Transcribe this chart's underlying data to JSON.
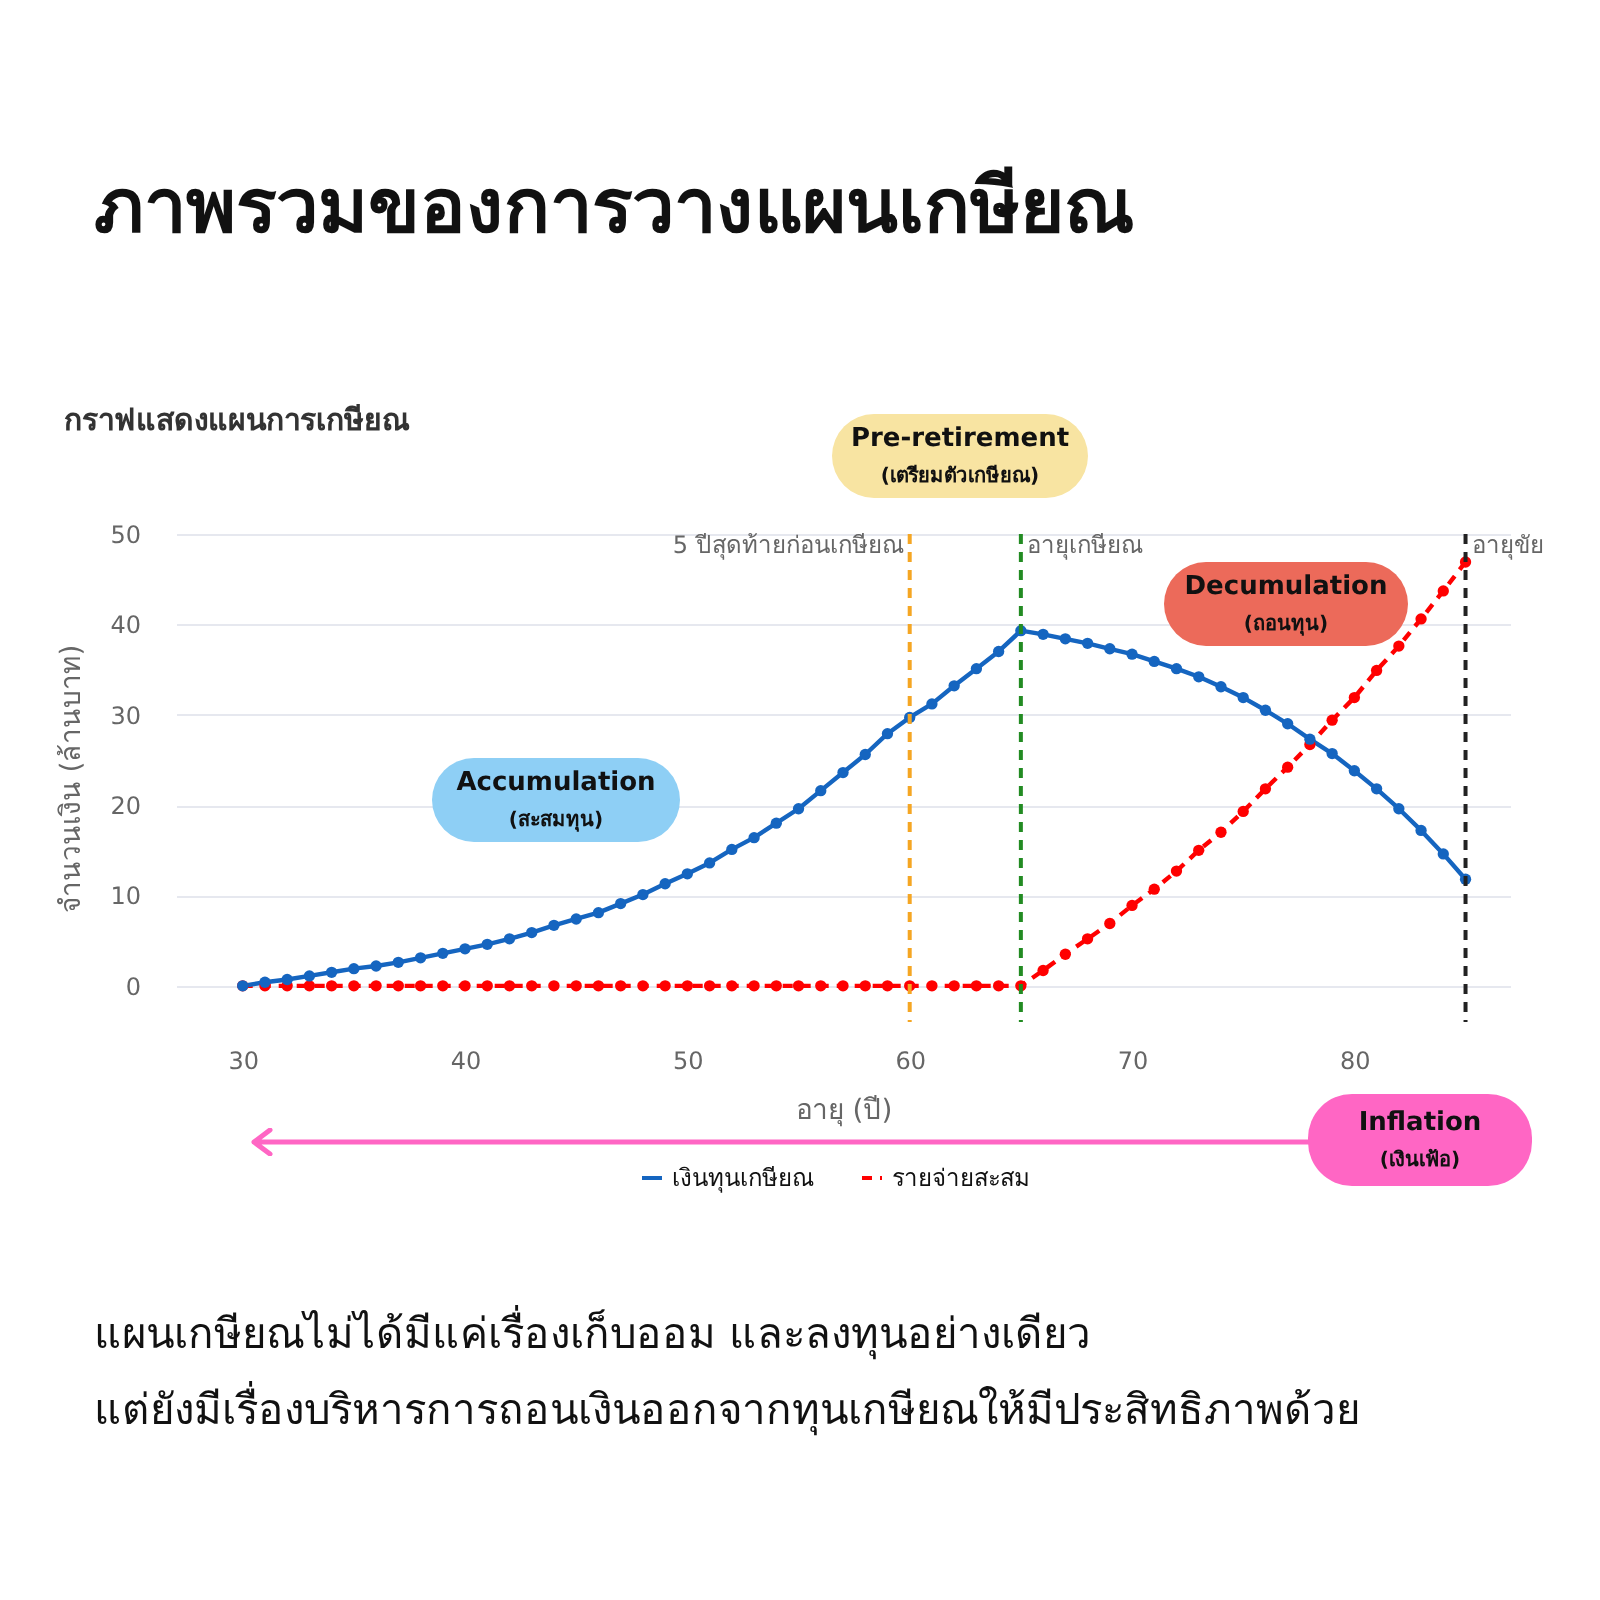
{
  "chart_data": {
    "type": "line",
    "title": "ภาพรวมของการวางแผนเกษียณ",
    "subtitle": "กราฟแสดงแผนการเกษียณ",
    "xlabel": "อายุ (ปี)",
    "ylabel": "จำนวนเงิน (ล้านบาท)",
    "x": [
      30,
      31,
      32,
      33,
      34,
      35,
      36,
      37,
      38,
      39,
      40,
      41,
      42,
      43,
      44,
      45,
      46,
      47,
      48,
      49,
      50,
      51,
      52,
      53,
      54,
      55,
      56,
      57,
      58,
      59,
      60,
      61,
      62,
      63,
      64,
      65,
      66,
      67,
      68,
      69,
      70,
      71,
      72,
      73,
      74,
      75,
      76,
      77,
      78,
      79,
      80,
      81,
      82,
      83,
      84,
      85
    ],
    "series": [
      {
        "name": "เงินทุนเกษียณ",
        "color": "#1565c0",
        "values": [
          0,
          0.4,
          0.7,
          1.1,
          1.5,
          1.9,
          2.2,
          2.6,
          3.1,
          3.6,
          4.1,
          4.6,
          5.2,
          5.9,
          6.7,
          7.4,
          8.1,
          9.1,
          10.1,
          11.3,
          12.4,
          13.6,
          15.1,
          16.4,
          18.0,
          19.6,
          21.6,
          23.6,
          25.6,
          27.9,
          29.7,
          31.2,
          33.2,
          35.1,
          37.0,
          39.3,
          38.9,
          38.4,
          37.9,
          37.3,
          36.7,
          35.9,
          35.1,
          34.2,
          33.1,
          31.9,
          30.5,
          29.0,
          27.3,
          25.7,
          23.8,
          21.8,
          19.6,
          17.2,
          14.6,
          11.8
        ]
      },
      {
        "name": "รายจ่ายสะสม",
        "color": "#ff0000",
        "line_style": "dashed",
        "values": [
          0,
          0,
          0,
          0,
          0,
          0,
          0,
          0,
          0,
          0,
          0,
          0,
          0,
          0,
          0,
          0,
          0,
          0,
          0,
          0,
          0,
          0,
          0,
          0,
          0,
          0,
          0,
          0,
          0,
          0,
          0,
          0,
          0,
          0,
          0,
          0,
          1.7,
          3.5,
          5.2,
          6.9,
          8.9,
          10.7,
          12.7,
          15.0,
          17.0,
          19.3,
          21.8,
          24.2,
          26.7,
          29.4,
          31.9,
          34.9,
          37.6,
          40.6,
          43.7,
          46.9
        ]
      }
    ],
    "xlim": [
      27,
      87
    ],
    "xticks": [
      30,
      40,
      50,
      60,
      70,
      80
    ],
    "ylim": [
      -4,
      50
    ],
    "yticks": [
      0,
      10,
      20,
      30,
      40,
      50
    ],
    "grid": "y",
    "legend": "bottom",
    "marker": "circle",
    "ref_lines": [
      {
        "axis": "x",
        "value": 60,
        "label": "5 ปีสุดท้ายก่อนเกษียณ",
        "color": "#f5a623",
        "line_style": "dashed"
      },
      {
        "axis": "x",
        "value": 65,
        "label": "อายุเกษียณ",
        "color": "#228b22",
        "line_style": "dashed"
      },
      {
        "axis": "x",
        "value": 85,
        "label": "อายุขัย",
        "color": "#222222",
        "line_style": "dashed"
      }
    ],
    "annotations": [
      "Accumulation",
      "(สะสมทุน)",
      "Pre-retirement",
      "(เตรียมตัวเกษียณ)",
      "Decumulation",
      "(ถอนทุน)",
      "Inflation",
      "(เงินเฟ้อ)",
      "แผนเกษียณไม่ได้มีแค่เรื่องเก็บออม และลงทุนอย่างเดียว",
      "แต่ยังมีเรื่องบริหารการถอนเงินออกจากทุนเกษียณให้มีประสิทธิภาพด้วย"
    ]
  }
}
